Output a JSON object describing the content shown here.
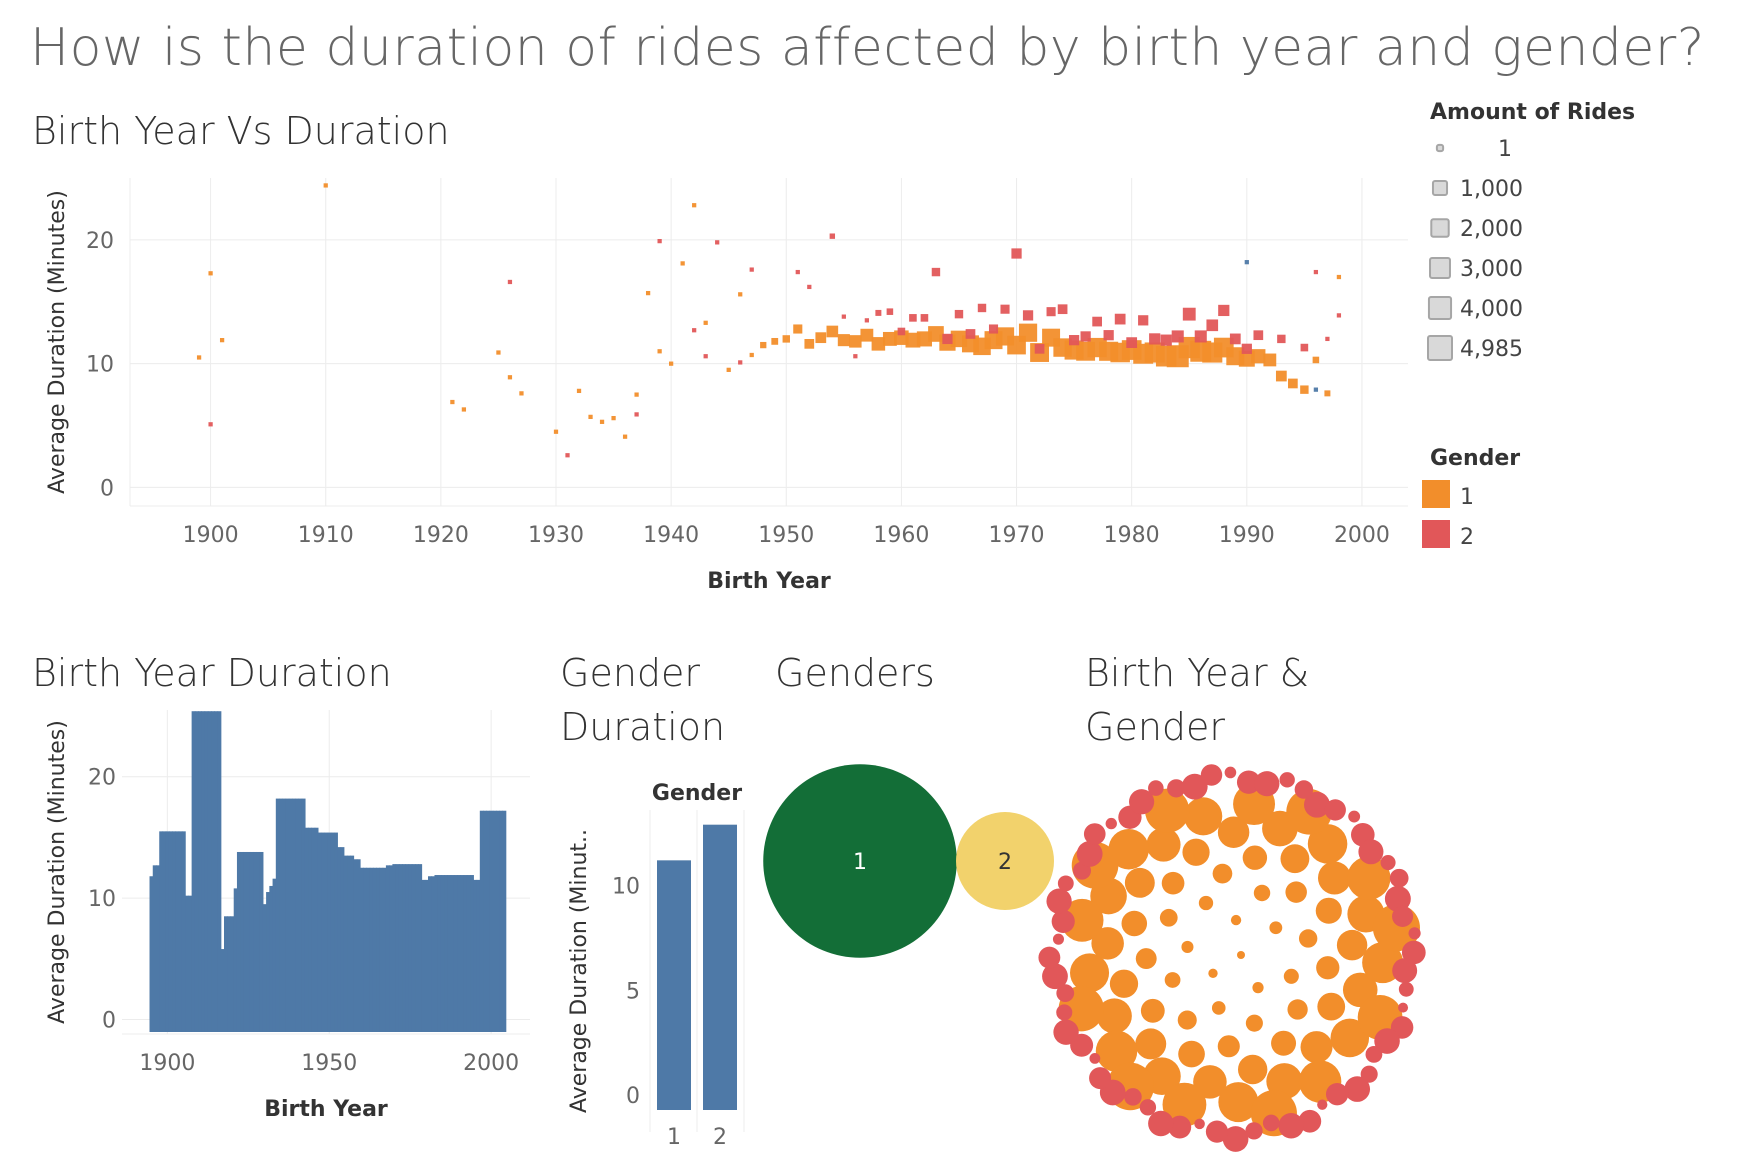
{
  "dashboard": {
    "title": "How is the duration of rides affected by birth year and gender?"
  },
  "legends": {
    "size": {
      "title": "Amount of Rides",
      "items": [
        "1",
        "1,000",
        "2,000",
        "3,000",
        "4,000",
        "4,985"
      ],
      "values": [
        1,
        1000,
        2000,
        3000,
        4000,
        4985
      ]
    },
    "color": {
      "title": "Gender",
      "items": [
        {
          "label": "1",
          "color": "#f28e2b"
        },
        {
          "label": "2",
          "color": "#e15759"
        }
      ]
    }
  },
  "colors": {
    "gender_1": "#f28e2b",
    "gender_2": "#e15759",
    "gender_0": "#4e79a7",
    "bar": "#4e79a7",
    "bubble_1": "#136e37",
    "bubble_2": "#f2d26c",
    "grid": "#ececec",
    "axis_text": "#666666"
  },
  "chart_data": [
    {
      "id": "scatter",
      "type": "scatter",
      "title": "Birth Year Vs Duration",
      "xlabel": "Birth Year",
      "ylabel": "Average Duration (Minutes)",
      "xlim": [
        1893,
        2004
      ],
      "ylim": [
        -1.5,
        25
      ],
      "xticks": [
        "1900",
        "1910",
        "1920",
        "1930",
        "1940",
        "1950",
        "1960",
        "1970",
        "1980",
        "1990",
        "2000"
      ],
      "yticks": [
        "0",
        "10",
        "20"
      ],
      "size_encoding": "Amount of Rides",
      "color_encoding": "Gender",
      "series": [
        {
          "name": "1",
          "points": [
            [
              1899,
              10.5,
              1
            ],
            [
              1900,
              17.3,
              1
            ],
            [
              1901,
              11.9,
              1
            ],
            [
              1910,
              24.4,
              1
            ],
            [
              1921,
              6.9,
              1
            ],
            [
              1922,
              6.3,
              1
            ],
            [
              1925,
              10.9,
              1
            ],
            [
              1926,
              8.9,
              1
            ],
            [
              1927,
              7.6,
              1
            ],
            [
              1930,
              4.5,
              1
            ],
            [
              1932,
              7.8,
              1
            ],
            [
              1933,
              5.7,
              1
            ],
            [
              1934,
              5.3,
              1
            ],
            [
              1935,
              5.6,
              1
            ],
            [
              1936,
              4.1,
              1
            ],
            [
              1937,
              7.5,
              1
            ],
            [
              1938,
              15.7,
              1
            ],
            [
              1939,
              11,
              1
            ],
            [
              1940,
              10.0,
              1
            ],
            [
              1941,
              18.1,
              1
            ],
            [
              1942,
              22.8,
              1
            ],
            [
              1943,
              13.3,
              1
            ],
            [
              1945,
              9.5,
              1
            ],
            [
              1946,
              15.6,
              1
            ],
            [
              1947,
              10.7,
              1
            ],
            [
              1948,
              11.5,
              80
            ],
            [
              1949,
              11.8,
              120
            ],
            [
              1950,
              12.0,
              180
            ],
            [
              1951,
              12.8,
              400
            ],
            [
              1952,
              11.6,
              500
            ],
            [
              1953,
              12.1,
              700
            ],
            [
              1954,
              12.6,
              900
            ],
            [
              1955,
              11.9,
              1000
            ],
            [
              1956,
              11.8,
              1100
            ],
            [
              1957,
              12.3,
              1200
            ],
            [
              1958,
              11.6,
              1400
            ],
            [
              1959,
              12.0,
              1500
            ],
            [
              1960,
              12.1,
              1700
            ],
            [
              1961,
              11.9,
              1800
            ],
            [
              1962,
              12.0,
              1900
            ],
            [
              1963,
              12.4,
              2100
            ],
            [
              1964,
              11.7,
              2300
            ],
            [
              1965,
              12.0,
              2400
            ],
            [
              1966,
              11.6,
              2600
            ],
            [
              1967,
              11.4,
              2800
            ],
            [
              1968,
              11.9,
              3000
            ],
            [
              1969,
              12.2,
              3100
            ],
            [
              1970,
              11.5,
              3300
            ],
            [
              1971,
              12.5,
              3100
            ],
            [
              1972,
              10.9,
              3400
            ],
            [
              1973,
              12.1,
              3000
            ],
            [
              1974,
              11.3,
              3200
            ],
            [
              1975,
              11.1,
              3500
            ],
            [
              1976,
              11.0,
              3400
            ],
            [
              1977,
              11.3,
              3600
            ],
            [
              1978,
              11.0,
              3500
            ],
            [
              1979,
              10.9,
              3700
            ],
            [
              1980,
              11.1,
              3800
            ],
            [
              1981,
              10.8,
              3900
            ],
            [
              1982,
              10.9,
              4000
            ],
            [
              1983,
              10.6,
              4200
            ],
            [
              1984,
              10.6,
              4985
            ],
            [
              1985,
              11.3,
              4600
            ],
            [
              1986,
              11.0,
              4400
            ],
            [
              1987,
              10.9,
              4000
            ],
            [
              1988,
              11.3,
              3800
            ],
            [
              1989,
              10.6,
              3000
            ],
            [
              1990,
              10.4,
              2200
            ],
            [
              1991,
              10.6,
              1600
            ],
            [
              1992,
              10.3,
              1200
            ],
            [
              1993,
              9.0,
              700
            ],
            [
              1994,
              8.4,
              500
            ],
            [
              1995,
              7.9,
              300
            ],
            [
              1996,
              10.3,
              100
            ],
            [
              1997,
              7.6,
              60
            ],
            [
              1998,
              17.0,
              1
            ]
          ]
        },
        {
          "name": "2",
          "points": [
            [
              1900,
              5.1,
              1
            ],
            [
              1926,
              16.6,
              1
            ],
            [
              1931,
              2.6,
              1
            ],
            [
              1937,
              5.9,
              1
            ],
            [
              1939,
              19.9,
              1
            ],
            [
              1942,
              12.7,
              1
            ],
            [
              1943,
              10.6,
              1
            ],
            [
              1944,
              19.8,
              1
            ],
            [
              1946,
              10.1,
              1
            ],
            [
              1947,
              17.6,
              1
            ],
            [
              1951,
              17.4,
              1
            ],
            [
              1952,
              16.2,
              1
            ],
            [
              1954,
              20.3,
              30
            ],
            [
              1955,
              13.8,
              1
            ],
            [
              1956,
              10.6,
              1
            ],
            [
              1957,
              13.5,
              1
            ],
            [
              1958,
              14.1,
              60
            ],
            [
              1959,
              14.2,
              100
            ],
            [
              1960,
              12.6,
              200
            ],
            [
              1961,
              13.7,
              200
            ],
            [
              1962,
              13.7,
              200
            ],
            [
              1963,
              17.4,
              300
            ],
            [
              1964,
              12.0,
              600
            ],
            [
              1965,
              14.0,
              300
            ],
            [
              1966,
              12.4,
              500
            ],
            [
              1967,
              14.5,
              300
            ],
            [
              1968,
              12.8,
              400
            ],
            [
              1969,
              14.4,
              400
            ],
            [
              1970,
              18.9,
              600
            ],
            [
              1971,
              13.9,
              600
            ],
            [
              1972,
              11.2,
              500
            ],
            [
              1973,
              14.2,
              400
            ],
            [
              1974,
              14.4,
              500
            ],
            [
              1975,
              11.9,
              600
            ],
            [
              1976,
              12.2,
              600
            ],
            [
              1977,
              13.4,
              500
            ],
            [
              1978,
              12.3,
              600
            ],
            [
              1979,
              13.6,
              700
            ],
            [
              1980,
              11.7,
              700
            ],
            [
              1981,
              13.5,
              600
            ],
            [
              1982,
              12.0,
              800
            ],
            [
              1983,
              11.9,
              800
            ],
            [
              1984,
              12.2,
              1000
            ],
            [
              1985,
              14.0,
              1200
            ],
            [
              1986,
              12.2,
              1000
            ],
            [
              1987,
              13.1,
              900
            ],
            [
              1988,
              14.3,
              800
            ],
            [
              1989,
              12.0,
              700
            ],
            [
              1990,
              11.2,
              600
            ],
            [
              1991,
              12.3,
              500
            ],
            [
              1993,
              12.0,
              300
            ],
            [
              1995,
              11.3,
              200
            ],
            [
              1996,
              17.4,
              1
            ],
            [
              1997,
              12.0,
              1
            ],
            [
              1998,
              13.9,
              1
            ]
          ]
        },
        {
          "name": "0",
          "points": [
            [
              1990,
              18.2,
              1
            ],
            [
              1996,
              7.9,
              1
            ]
          ]
        }
      ]
    },
    {
      "id": "birth-year-bar",
      "type": "bar",
      "title": "Birth Year Duration",
      "xlabel": "Birth Year",
      "ylabel": "Average Duration (Minutes)",
      "xlim": [
        1886,
        2012
      ],
      "ylim": [
        -1.2,
        25.5
      ],
      "xticks": [
        "1900",
        "1950",
        "2000"
      ],
      "yticks": [
        "0",
        "10",
        "20"
      ],
      "x": [
        1895,
        1896,
        1897,
        1898,
        1899,
        1900,
        1901,
        1902,
        1903,
        1904,
        1905,
        1906,
        1907,
        1908,
        1909,
        1910,
        1911,
        1912,
        1913,
        1914,
        1915,
        1916,
        1917,
        1918,
        1919,
        1920,
        1921,
        1922,
        1923,
        1924,
        1925,
        1926,
        1927,
        1928,
        1929,
        1930,
        1931,
        1932,
        1933,
        1934,
        1935,
        1936,
        1937,
        1938,
        1939,
        1940,
        1941,
        1942,
        1943,
        1944,
        1945,
        1946,
        1947,
        1948,
        1949,
        1950,
        1951,
        1952,
        1953,
        1954,
        1955,
        1956,
        1957,
        1958,
        1959,
        1960,
        1961,
        1962,
        1963,
        1964,
        1965,
        1966,
        1967,
        1968,
        1969,
        1970,
        1971,
        1972,
        1973,
        1974,
        1975,
        1976,
        1977,
        1978,
        1979,
        1980,
        1981,
        1982,
        1983,
        1984,
        1985,
        1986,
        1987,
        1988,
        1989,
        1990,
        1991,
        1992,
        1993,
        1994,
        1995,
        1996,
        1997,
        1998,
        1999,
        2000,
        2001,
        2002,
        2003,
        2004
      ],
      "values": [
        11.8,
        12.7,
        12.7,
        15.5,
        15.5,
        15.5,
        15.5,
        15.5,
        15.5,
        15.5,
        15.5,
        10.2,
        10.2,
        25.4,
        25.4,
        25.4,
        25.4,
        25.4,
        25.4,
        25.4,
        25.4,
        25.4,
        5.8,
        8.5,
        8.5,
        8.5,
        10.8,
        13.8,
        13.8,
        13.8,
        13.8,
        13.8,
        13.8,
        13.8,
        13.8,
        9.5,
        10.5,
        11.0,
        11.6,
        18.2,
        18.2,
        18.2,
        18.2,
        18.2,
        18.2,
        18.2,
        18.2,
        18.2,
        15.8,
        15.8,
        15.8,
        15.8,
        15.4,
        15.4,
        15.4,
        15.4,
        15.4,
        15.4,
        14.2,
        14.2,
        13.5,
        13.5,
        13.5,
        13.2,
        13.2,
        12.5,
        12.5,
        12.5,
        12.5,
        12.5,
        12.5,
        12.5,
        12.5,
        12.7,
        12.7,
        12.8,
        12.8,
        12.8,
        12.8,
        12.8,
        12.8,
        12.8,
        12.8,
        12.8,
        11.5,
        11.5,
        11.8,
        11.8,
        11.9,
        11.9,
        11.9,
        11.9,
        11.9,
        11.9,
        11.9,
        11.9,
        11.9,
        11.9,
        11.9,
        11.9,
        11.5,
        11.5,
        17.2,
        17.2,
        17.2,
        17.2,
        17.2,
        17.2,
        17.2,
        17.2
      ]
    },
    {
      "id": "gender-bar",
      "type": "bar",
      "title": "Gender Duration",
      "header": "Gender",
      "ylabel": "Average Duration (Minut..",
      "ylim": [
        -0.8,
        13.6
      ],
      "yticks": [
        "0",
        "5",
        "10"
      ],
      "categories": [
        "1",
        "2"
      ],
      "values": [
        11.2,
        12.9
      ]
    },
    {
      "id": "genders-bubbles",
      "type": "bubble",
      "title": "Genders",
      "categories": [
        "1",
        "2"
      ],
      "values": [
        3.9,
        1
      ]
    },
    {
      "id": "packed-bubbles",
      "type": "bubble",
      "title": "Birth Year & Gender",
      "series": [
        {
          "name": "1",
          "count": 70
        },
        {
          "name": "2",
          "count": 60
        }
      ]
    }
  ]
}
